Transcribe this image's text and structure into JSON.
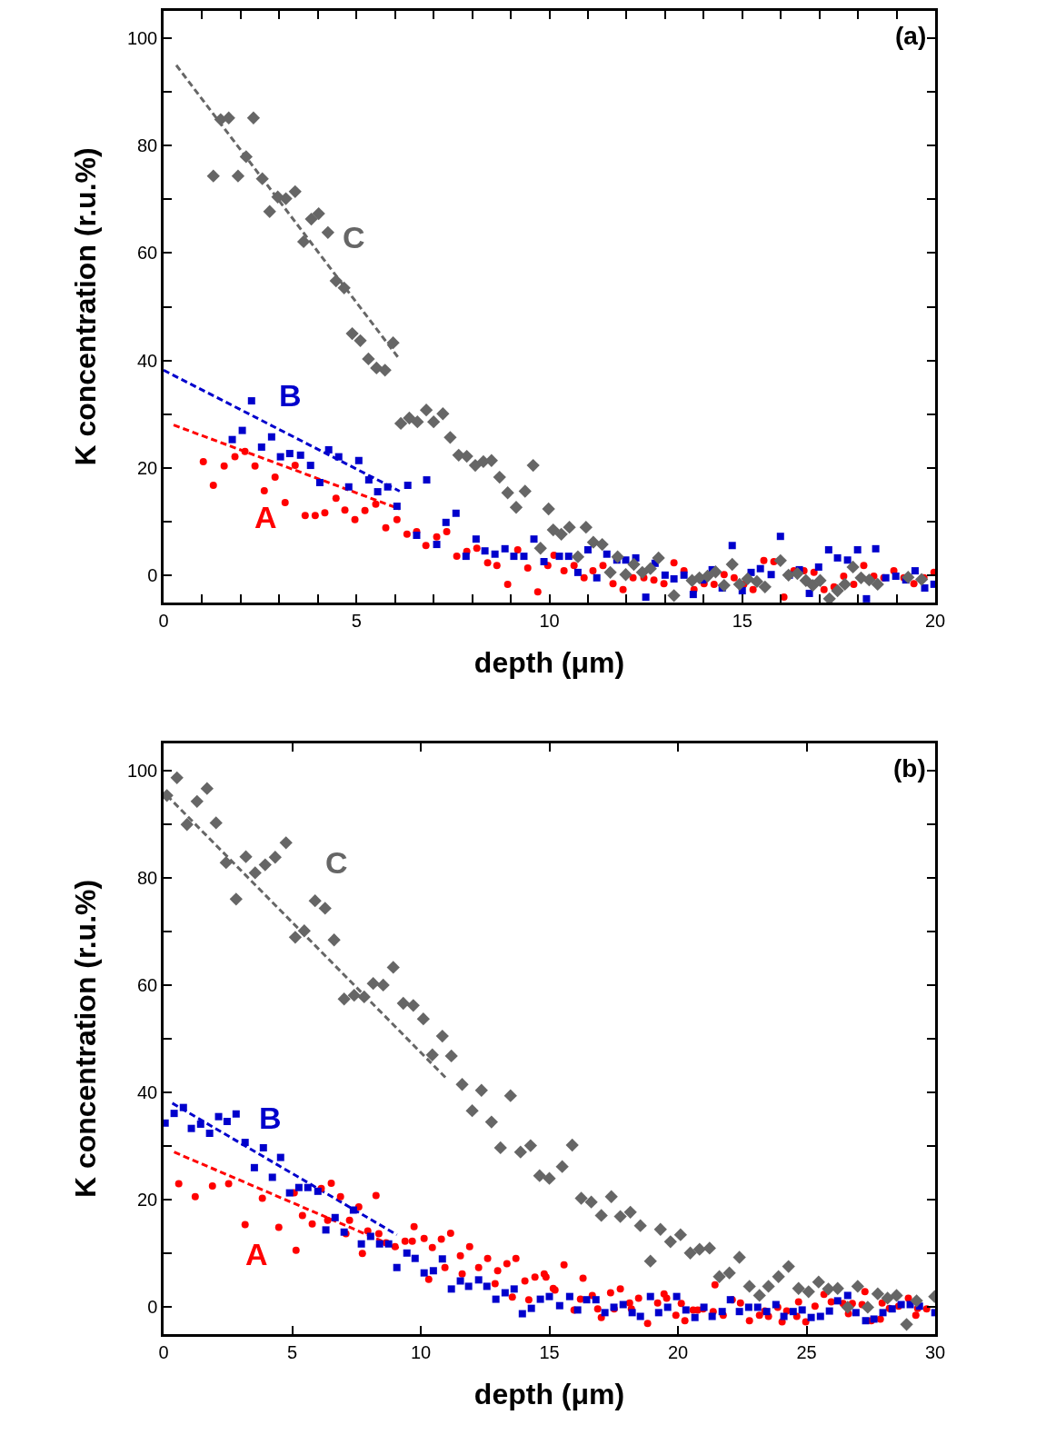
{
  "chart_data": [
    {
      "type": "scatter",
      "xlabel": "depth (μm)",
      "ylabel": "K concentration (r.u.%)",
      "xlim": [
        0,
        20
      ],
      "ylim": [
        -5,
        105
      ],
      "xticks": [
        0,
        {
          "value": 1,
          "label": null
        },
        {
          "value": 2,
          "label": null
        },
        {
          "value": 3,
          "label": null
        },
        {
          "value": 4,
          "label": null
        },
        5,
        {
          "value": 6,
          "label": null
        },
        {
          "value": 7,
          "label": null
        },
        {
          "value": 8,
          "label": null
        },
        {
          "value": 9,
          "label": null
        },
        10,
        {
          "value": 11,
          "label": null
        },
        {
          "value": 12,
          "label": null
        },
        {
          "value": 13,
          "label": null
        },
        {
          "value": 14,
          "label": null
        },
        15,
        {
          "value": 16,
          "label": null
        },
        {
          "value": 17,
          "label": null
        },
        {
          "value": 18,
          "label": null
        },
        {
          "value": 19,
          "label": null
        },
        20
      ],
      "yticks": [
        0,
        {
          "value": 10,
          "label": null
        },
        20,
        {
          "value": 30,
          "label": null
        },
        40,
        {
          "value": 50,
          "label": null
        },
        60,
        {
          "value": 70,
          "label": null
        },
        80,
        {
          "value": 90,
          "label": null
        },
        100
      ],
      "annotations": [
        "(a)",
        "A",
        "B",
        "C"
      ],
      "series": [
        {
          "marker": "circle",
          "color": "#ff0000",
          "x": [
            1.03,
            1.29,
            1.57,
            1.85,
            2.11,
            2.37,
            2.61,
            2.89,
            3.15,
            3.41,
            3.67,
            3.93,
            4.18,
            4.47,
            4.7,
            4.96,
            5.22,
            5.5,
            5.76,
            6.05,
            6.31,
            6.56,
            6.8,
            7.08,
            7.34,
            7.6,
            7.86,
            8.12,
            8.4,
            8.64,
            8.92,
            9.18,
            9.44,
            9.7,
            9.96,
            10.12,
            10.38,
            10.64,
            10.9,
            11.13,
            11.39,
            11.65,
            11.91,
            12.17,
            12.45,
            12.71,
            12.97,
            13.23,
            13.49,
            13.75,
            14.01,
            14.27,
            14.53,
            14.79,
            15.04,
            15.28,
            15.56,
            15.82,
            16.08,
            16.34,
            16.6,
            16.86,
            17.12,
            17.38,
            17.63,
            17.89,
            18.15,
            18.41,
            18.67,
            18.93,
            19.19,
            19.45,
            19.71,
            19.97
          ],
          "values": [
            21.2,
            16.8,
            20.4,
            22.1,
            23.1,
            20.4,
            15.8,
            18.3,
            13.6,
            20.5,
            11.2,
            11.2,
            11.7,
            14.4,
            12.2,
            10.4,
            12.1,
            13.3,
            8.9,
            10.4,
            7.7,
            8.2,
            5.6,
            7.2,
            8.2,
            3.6,
            4.5,
            5.1,
            2.4,
            1.9,
            -1.6,
            4.8,
            1.4,
            -3.0,
            1.9,
            3.8,
            0.9,
            1.9,
            -0.4,
            0.9,
            1.9,
            -1.5,
            -2.6,
            -0.4,
            -0.4,
            -0.8,
            -1.5,
            2.4,
            0.9,
            -2.6,
            -1.5,
            -1.6,
            0.2,
            -0.4,
            -1.6,
            -2.6,
            2.8,
            2.6,
            -4.0,
            0.9,
            0.9,
            0.6,
            -2.6,
            -2.1,
            -0.1,
            -1.6,
            1.9,
            -0.1,
            -0.4,
            0.9,
            -0.4,
            -1.5,
            -0.4,
            0.6
          ]
        },
        {
          "marker": "square",
          "color": "#0000cc",
          "x": [
            1.78,
            2.04,
            2.28,
            2.54,
            2.8,
            3.03,
            3.27,
            3.55,
            3.81,
            4.05,
            4.28,
            4.54,
            4.8,
            5.06,
            5.32,
            5.55,
            5.81,
            6.05,
            6.33,
            6.56,
            6.82,
            7.08,
            7.32,
            7.58,
            7.84,
            8.1,
            8.33,
            8.59,
            8.85,
            9.08,
            9.34,
            9.6,
            9.86,
            10.26,
            10.5,
            10.74,
            11.0,
            11.23,
            11.49,
            11.75,
            11.98,
            12.24,
            12.5,
            12.74,
            13.0,
            13.23,
            13.49,
            13.73,
            13.98,
            14.22,
            14.48,
            14.74,
            15.0,
            15.23,
            15.47,
            15.75,
            15.99,
            16.22,
            16.48,
            16.74,
            16.98,
            17.24,
            17.47,
            17.73,
            17.99,
            18.22,
            18.46,
            18.72,
            18.98,
            19.24,
            19.48,
            19.73,
            19.97
          ],
          "values": [
            25.3,
            27.0,
            32.5,
            23.9,
            25.8,
            22.1,
            22.7,
            22.4,
            20.5,
            17.3,
            23.4,
            22.1,
            16.5,
            21.4,
            17.8,
            15.6,
            16.5,
            12.9,
            16.8,
            7.5,
            17.8,
            5.8,
            9.9,
            11.6,
            3.6,
            6.8,
            4.6,
            4.0,
            5.0,
            3.6,
            3.6,
            6.8,
            2.6,
            3.6,
            3.6,
            0.6,
            4.8,
            -0.4,
            4.0,
            2.9,
            2.9,
            3.3,
            -4.0,
            2.3,
            0.1,
            -0.6,
            0.1,
            -3.5,
            -0.8,
            1.1,
            -2.3,
            5.6,
            -2.8,
            0.6,
            1.3,
            0.2,
            7.3,
            0.1,
            1.1,
            -3.3,
            1.6,
            4.8,
            3.3,
            2.9,
            4.8,
            -4.3,
            5.0,
            -0.4,
            -0.1,
            -0.8,
            0.9,
            -2.3,
            -1.6
          ]
        },
        {
          "marker": "diamond",
          "color": "#666666",
          "x": [
            1.29,
            1.48,
            1.69,
            1.93,
            2.14,
            2.33,
            2.56,
            2.75,
            2.96,
            3.17,
            3.41,
            3.63,
            3.83,
            4.02,
            4.26,
            4.47,
            4.68,
            4.89,
            5.1,
            5.31,
            5.52,
            5.74,
            5.95,
            6.15,
            6.37,
            6.58,
            6.81,
            7.0,
            7.24,
            7.43,
            7.65,
            7.86,
            8.08,
            8.29,
            8.5,
            8.71,
            8.92,
            9.14,
            9.37,
            9.58,
            9.77,
            9.98,
            10.1,
            10.31,
            10.52,
            10.74,
            10.95,
            11.14,
            11.37,
            11.58,
            11.77,
            11.98,
            12.19,
            12.41,
            12.62,
            12.83,
            13.23,
            13.7,
            13.89,
            14.1,
            14.31,
            14.53,
            14.74,
            14.93,
            15.14,
            15.38,
            15.59,
            15.99,
            16.2,
            16.43,
            16.65,
            16.83,
            17.02,
            17.26,
            17.47,
            17.66,
            17.87,
            18.08,
            18.29,
            18.51,
            19.3,
            19.65
          ],
          "values": [
            74.3,
            84.8,
            85.1,
            74.3,
            77.9,
            85.1,
            73.8,
            67.7,
            70.4,
            70.1,
            71.4,
            62.1,
            66.3,
            67.3,
            63.8,
            54.8,
            53.5,
            45.0,
            43.7,
            40.3,
            38.6,
            38.2,
            43.3,
            28.3,
            29.3,
            28.6,
            30.8,
            28.6,
            30.1,
            25.7,
            22.4,
            22.2,
            20.5,
            21.2,
            21.4,
            18.3,
            15.4,
            12.7,
            15.7,
            20.5,
            5.1,
            12.4,
            8.5,
            7.7,
            9.0,
            3.5,
            9.0,
            6.2,
            5.8,
            0.6,
            3.5,
            0.2,
            2.1,
            0.6,
            1.3,
            3.3,
            -3.7,
            -0.9,
            -0.4,
            -0.1,
            0.7,
            -1.8,
            2.1,
            -1.6,
            -0.6,
            -1.1,
            -2.1,
            2.8,
            0.1,
            0.4,
            -0.9,
            -1.8,
            -0.9,
            -4.3,
            -2.8,
            -1.6,
            1.6,
            -0.4,
            -0.8,
            -1.6,
            -0.3,
            -0.7
          ]
        },
        {
          "type": "line",
          "line_style": "dashed",
          "color": "#ff0000",
          "x": [
            0.26,
            6.12
          ],
          "values": [
            28,
            12.4
          ]
        },
        {
          "type": "line",
          "line_style": "dashed",
          "color": "#0000cc",
          "x": [
            0.0,
            6.12
          ],
          "values": [
            38.2,
            15.7
          ]
        },
        {
          "type": "line",
          "line_style": "dashed",
          "color": "#666666",
          "x": [
            0.33,
            6.12
          ],
          "values": [
            94.9,
            40.2
          ]
        }
      ]
    },
    {
      "type": "scatter",
      "xlabel": "depth (μm)",
      "ylabel": "K concentration (r.u.%)",
      "xlim": [
        0,
        30
      ],
      "ylim": [
        -5,
        105
      ],
      "xticks": [
        0,
        5,
        10,
        15,
        20,
        25,
        30
      ],
      "yticks": [
        0,
        {
          "value": 10,
          "label": null
        },
        20,
        {
          "value": 30,
          "label": null
        },
        40,
        {
          "value": 50,
          "label": null
        },
        60,
        {
          "value": 70,
          "label": null
        },
        80,
        {
          "value": 90,
          "label": null
        },
        100
      ],
      "annotations": [
        "(b)",
        "A",
        "B",
        "C"
      ],
      "series": [
        {
          "marker": "circle",
          "color": "#ff0000",
          "x": [
            0.59,
            1.23,
            1.9,
            2.53,
            3.17,
            3.84,
            4.48,
            5.15,
            5.08,
            5.4,
            5.78,
            6.13,
            6.38,
            6.52,
            6.88,
            7.09,
            7.23,
            7.59,
            7.73,
            7.94,
            8.26,
            8.37,
            8.65,
            9.0,
            9.39,
            9.67,
            9.74,
            10.13,
            10.31,
            10.45,
            10.8,
            10.94,
            11.16,
            11.54,
            11.61,
            11.9,
            12.25,
            12.6,
            12.89,
            12.99,
            13.35,
            13.7,
            13.56,
            14.05,
            14.2,
            14.44,
            14.8,
            14.87,
            15.15,
            15.22,
            15.57,
            15.96,
            16.21,
            16.31,
            16.67,
            16.88,
            17.02,
            17.38,
            17.52,
            17.76,
            18.12,
            18.19,
            18.47,
            18.82,
            19.21,
            19.46,
            19.56,
            19.92,
            20.13,
            20.27,
            20.59,
            20.77,
            20.98,
            21.37,
            21.44,
            21.76,
            22.11,
            22.43,
            22.78,
            23.17,
            23.38,
            23.52,
            23.88,
            24.05,
            24.23,
            24.62,
            24.69,
            24.97,
            25.33,
            25.68,
            25.96,
            26.42,
            26.63,
            26.78,
            27.16,
            27.27,
            27.52,
            27.87,
            27.94,
            28.22,
            28.58,
            28.96,
            29.25,
            29.32,
            29.67
          ],
          "values": [
            23.0,
            20.6,
            22.6,
            23.0,
            15.4,
            20.3,
            14.9,
            10.6,
            21.3,
            17.1,
            15.5,
            22.1,
            16.2,
            23.1,
            20.6,
            13.7,
            16.2,
            18.7,
            10.0,
            14.2,
            20.8,
            13.7,
            12.0,
            11.3,
            12.3,
            12.3,
            15.0,
            12.8,
            5.2,
            11.1,
            12.7,
            7.4,
            13.8,
            9.6,
            6.2,
            11.3,
            7.4,
            9.1,
            4.4,
            6.8,
            8.1,
            9.1,
            1.9,
            4.9,
            1.4,
            5.6,
            6.2,
            5.6,
            3.5,
            3.2,
            7.9,
            -0.5,
            1.5,
            5.4,
            2.2,
            -0.3,
            -1.9,
            2.7,
            -0.3,
            3.4,
            0.8,
            -0.3,
            1.7,
            -3.0,
            0.8,
            2.5,
            1.7,
            -1.5,
            0.7,
            -2.5,
            -0.5,
            -0.5,
            -0.3,
            -0.8,
            4.2,
            -1.5,
            1.4,
            0.8,
            -2.5,
            -1.5,
            -0.7,
            -1.7,
            0,
            -2.7,
            -0.7,
            -1.7,
            1.0,
            -2.7,
            0.2,
            2.4,
            1.0,
            0.7,
            -1.2,
            0.7,
            0.5,
            2.9,
            -2.5,
            -2.2,
            0.8,
            -0.2,
            0.2,
            1.7,
            -1.5,
            -0.2,
            -0.3
          ]
        },
        {
          "marker": "square",
          "color": "#0000cc",
          "x": [
            0.06,
            0.41,
            0.77,
            1.08,
            1.44,
            1.79,
            2.14,
            2.47,
            2.82,
            3.17,
            3.53,
            3.88,
            4.23,
            4.55,
            4.9,
            5.26,
            5.61,
            6.0,
            6.31,
            6.67,
            7.02,
            7.38,
            7.69,
            8.05,
            8.4,
            8.75,
            9.07,
            9.46,
            9.78,
            10.13,
            10.49,
            10.84,
            11.19,
            11.54,
            11.86,
            12.25,
            12.57,
            12.92,
            13.28,
            13.63,
            13.95,
            14.3,
            14.65,
            15.0,
            15.4,
            15.79,
            16.1,
            16.45,
            16.81,
            17.16,
            17.51,
            17.87,
            18.22,
            18.54,
            18.93,
            19.25,
            19.6,
            19.95,
            20.31,
            20.66,
            21.01,
            21.33,
            21.72,
            22.04,
            22.39,
            22.75,
            23.1,
            23.45,
            23.81,
            24.12,
            24.48,
            24.83,
            25.18,
            25.54,
            25.89,
            26.21,
            26.6,
            26.92,
            27.3,
            27.62,
            27.97,
            28.33,
            28.68,
            29.03,
            29.39,
            29.99
          ],
          "values": [
            34.3,
            36.1,
            37.2,
            33.3,
            34.1,
            32.4,
            35.5,
            34.6,
            36.0,
            30.7,
            26.0,
            29.7,
            24.2,
            27.9,
            21.3,
            22.3,
            22.3,
            21.6,
            14.4,
            16.7,
            14.0,
            18.1,
            11.8,
            13.2,
            11.8,
            11.8,
            7.4,
            10.1,
            9.1,
            6.4,
            6.8,
            9.0,
            3.4,
            4.9,
            3.9,
            5.1,
            3.9,
            1.5,
            2.7,
            3.4,
            -1.2,
            -0.2,
            1.5,
            2.0,
            0.3,
            2.0,
            -0.5,
            1.4,
            1.4,
            -1.0,
            0,
            0.5,
            -1.0,
            -1.7,
            2.0,
            -1.0,
            0,
            2.0,
            -0.5,
            -1.9,
            0,
            -1.7,
            -0.8,
            1.4,
            -0.8,
            0,
            0,
            -0.8,
            0.5,
            -1.7,
            -0.8,
            -0.5,
            -1.9,
            -1.7,
            -0.7,
            1.2,
            2.2,
            -1.0,
            -2.5,
            -2.2,
            -1.0,
            -0.3,
            0.5,
            0.5,
            0.2,
            -1.0
          ]
        },
        {
          "marker": "diamond",
          "color": "#666666",
          "x": [
            0.13,
            0.52,
            0.91,
            1.3,
            1.69,
            2.04,
            2.43,
            2.82,
            3.2,
            3.56,
            3.95,
            4.34,
            4.76,
            5.12,
            5.47,
            5.89,
            6.28,
            6.63,
            7.02,
            7.41,
            7.8,
            8.15,
            8.54,
            8.93,
            9.32,
            9.71,
            10.1,
            10.45,
            10.84,
            11.19,
            11.61,
            12.0,
            12.36,
            12.75,
            13.1,
            13.49,
            13.88,
            14.27,
            14.62,
            15.0,
            15.5,
            15.89,
            16.24,
            16.63,
            17.02,
            17.41,
            17.76,
            18.15,
            18.54,
            18.93,
            19.32,
            19.71,
            20.1,
            20.48,
            20.84,
            21.23,
            21.61,
            22.0,
            22.39,
            22.78,
            23.17,
            23.52,
            23.91,
            24.3,
            24.69,
            25.08,
            25.47,
            25.85,
            26.21,
            26.6,
            26.99,
            27.38,
            27.77,
            28.15,
            28.5,
            28.89,
            29.28,
            29.98
          ],
          "values": [
            95.3,
            98.6,
            89.9,
            94.2,
            96.6,
            90.2,
            82.8,
            76.0,
            83.9,
            80.9,
            82.4,
            83.8,
            86.5,
            68.9,
            70.1,
            75.7,
            74.3,
            68.4,
            57.4,
            58.1,
            57.8,
            60.3,
            60.0,
            63.3,
            56.6,
            56.2,
            53.7,
            47.0,
            50.5,
            46.8,
            41.5,
            36.6,
            40.4,
            34.5,
            29.7,
            39.4,
            28.9,
            30.1,
            24.5,
            24.0,
            26.2,
            30.2,
            20.3,
            19.6,
            17.1,
            20.6,
            16.9,
            17.7,
            15.2,
            8.6,
            14.5,
            12.2,
            13.5,
            10.1,
            10.8,
            11.0,
            5.7,
            6.4,
            9.3,
            3.9,
            2.2,
            3.9,
            5.7,
            7.6,
            3.5,
            2.9,
            4.7,
            3.4,
            3.5,
            0,
            3.9,
            0,
            2.5,
            1.7,
            2.2,
            -3.2,
            1.2,
            2.0
          ]
        },
        {
          "type": "line",
          "line_style": "dashed",
          "color": "#ff0000",
          "x": [
            0.41,
            9.14
          ],
          "values": [
            28.9,
            11.0
          ]
        },
        {
          "type": "line",
          "line_style": "dashed",
          "color": "#0000cc",
          "x": [
            0.34,
            9.07
          ],
          "values": [
            38.0,
            13.5
          ]
        },
        {
          "type": "line",
          "line_style": "dashed",
          "color": "#666666",
          "x": [
            0.13,
            10.98
          ],
          "values": [
            95.3,
            42.7
          ]
        }
      ]
    }
  ]
}
